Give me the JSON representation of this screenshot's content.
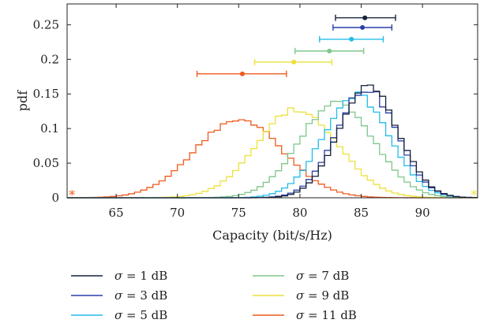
{
  "chart_data": {
    "type": "line",
    "xlabel": "Capacity (bit/s/Hz)",
    "ylabel": "pdf",
    "xlim": [
      61,
      94.5
    ],
    "ylim": [
      0,
      0.28
    ],
    "x_ticks": [
      65,
      70,
      75,
      80,
      85,
      90
    ],
    "x_tick_labels": [
      "65",
      "70",
      "75",
      "80",
      "85",
      "90"
    ],
    "y_ticks": [
      0,
      0.05,
      0.1,
      0.15,
      0.2,
      0.25
    ],
    "y_tick_labels": [
      "0",
      "0.05",
      "0.1",
      "0.15",
      "0.2",
      "0.25"
    ],
    "grid": false,
    "legend_placement": "below plot, two columns",
    "legend_prefix": "σ",
    "series": [
      {
        "name": "σ = 1 dB",
        "sigma": "σ",
        "value_text": "= 1 dB",
        "color": "#14213d",
        "mean": 85.6,
        "sd": 2.4,
        "peak": 0.162,
        "errorbar": {
          "y": 0.26,
          "mean": 85.3,
          "low": 82.9,
          "high": 87.8
        }
      },
      {
        "name": "σ = 3 dB",
        "sigma": "σ",
        "value_text": "= 3 dB",
        "color": "#2c3fa6",
        "mean": 85.4,
        "sd": 2.45,
        "peak": 0.158,
        "errorbar": {
          "y": 0.246,
          "mean": 85.1,
          "low": 82.7,
          "high": 87.5
        }
      },
      {
        "name": "σ = 5 dB",
        "sigma": "σ",
        "value_text": "= 5 dB",
        "color": "#22bce8",
        "mean": 84.6,
        "sd": 2.7,
        "peak": 0.148,
        "errorbar": {
          "y": 0.229,
          "mean": 84.2,
          "low": 81.6,
          "high": 86.8
        }
      },
      {
        "name": "σ = 7 dB",
        "sigma": "σ",
        "value_text": "= 7 dB",
        "color": "#7fc68a",
        "mean": 83.0,
        "sd": 3.0,
        "peak": 0.138,
        "errorbar": {
          "y": 0.212,
          "mean": 82.4,
          "low": 79.6,
          "high": 85.2
        }
      },
      {
        "name": "σ = 9 dB",
        "sigma": "σ",
        "value_text": "= 9 dB",
        "color": "#ece13b",
        "mean": 79.8,
        "sd": 3.3,
        "peak": 0.128,
        "errorbar": {
          "y": 0.196,
          "mean": 79.5,
          "low": 76.3,
          "high": 82.6
        }
      },
      {
        "name": "σ = 11 dB",
        "sigma": "σ",
        "value_text": "= 11 dB",
        "color": "#ee5a1e",
        "mean": 75.0,
        "sd": 3.6,
        "peak": 0.113,
        "errorbar": {
          "y": 0.179,
          "mean": 75.3,
          "low": 71.6,
          "high": 78.9
        }
      }
    ],
    "outlier_markers": [
      {
        "symbol": "*",
        "x": 61.4,
        "y": 0.0,
        "color": "#ee5a1e"
      },
      {
        "symbol": "*",
        "x": 94.2,
        "y": 0.0,
        "color": "#ece13b"
      }
    ]
  }
}
